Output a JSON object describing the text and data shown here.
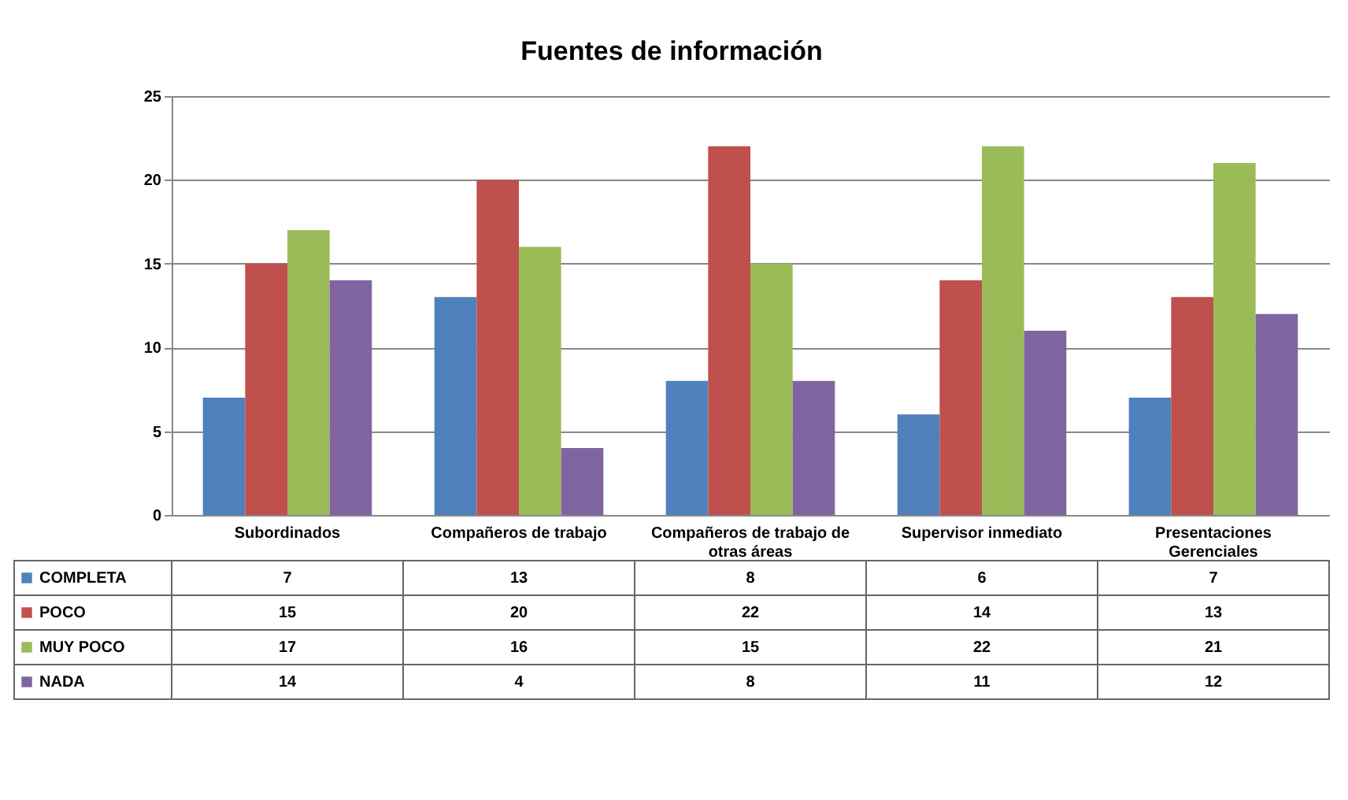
{
  "chart_data": {
    "type": "bar",
    "title": "Fuentes de información",
    "categories": [
      "Subordinados",
      "Compañeros de trabajo",
      "Compañeros de trabajo de otras áreas",
      "Supervisor inmediato",
      "Presentaciones Gerenciales"
    ],
    "series": [
      {
        "name": "COMPLETA",
        "color": "#4f81bd",
        "values": [
          7,
          13,
          8,
          6,
          7
        ]
      },
      {
        "name": "POCO",
        "color": "#c0504d",
        "values": [
          15,
          20,
          22,
          14,
          13
        ]
      },
      {
        "name": "MUY POCO",
        "color": "#9bbb59",
        "values": [
          17,
          16,
          15,
          22,
          21
        ]
      },
      {
        "name": "NADA",
        "color": "#8064a2",
        "values": [
          14,
          4,
          8,
          11,
          12
        ]
      }
    ],
    "ylim": [
      0,
      25
    ],
    "yticks": [
      0,
      5,
      10,
      15,
      20,
      25
    ],
    "grid": "y",
    "data_labels": true,
    "legend": "bottom left"
  }
}
